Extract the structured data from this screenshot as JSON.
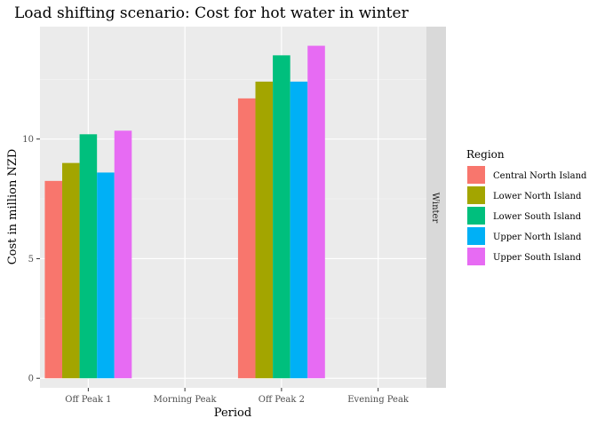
{
  "chart_data": {
    "type": "bar",
    "title": "Load shifting scenario: Cost for hot water in winter",
    "xlabel": "Period",
    "ylabel": "Cost in million NZD",
    "facet_label": "Winter",
    "categories": [
      "Off Peak 1",
      "Morning Peak",
      "Off Peak 2",
      "Evening Peak"
    ],
    "ylim": [
      -0.4,
      14.7
    ],
    "yticks": [
      0,
      5,
      10
    ],
    "grid": true,
    "legend_title": "Region",
    "legend_position": "right",
    "series": [
      {
        "name": "Central North Island",
        "color": "#F8766D",
        "values": [
          8.25,
          null,
          11.7,
          null
        ]
      },
      {
        "name": "Lower North Island",
        "color": "#A3A500",
        "values": [
          9.0,
          null,
          12.4,
          null
        ]
      },
      {
        "name": "Lower South Island",
        "color": "#00BF7D",
        "values": [
          10.2,
          null,
          13.5,
          null
        ]
      },
      {
        "name": "Upper North Island",
        "color": "#00B0F6",
        "values": [
          8.6,
          null,
          12.4,
          null
        ]
      },
      {
        "name": "Upper South Island",
        "color": "#E76BF3",
        "values": [
          10.35,
          null,
          13.9,
          null
        ]
      }
    ]
  }
}
